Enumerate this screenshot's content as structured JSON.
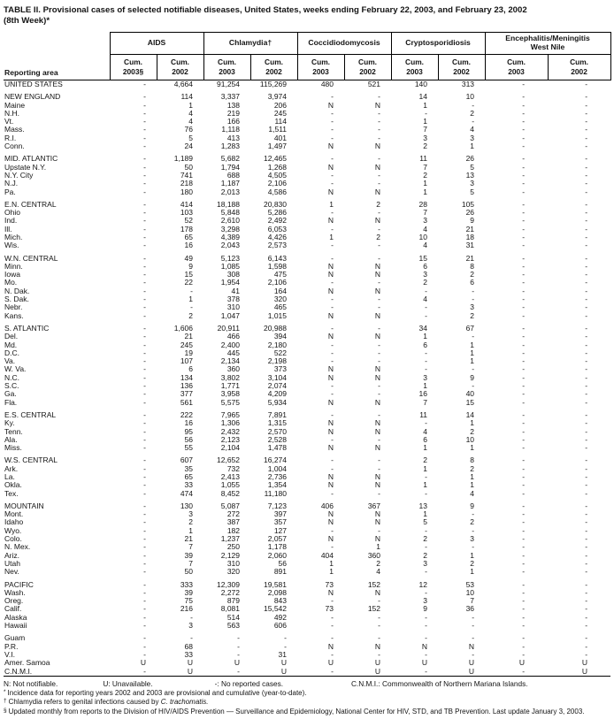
{
  "title_line1": "TABLE II. Provisional cases of selected notifiable diseases, United States, weeks ending February 22, 2003, and February 23, 2002",
  "title_line2": "(8th Week)*",
  "table": {
    "reporting_area_label": "Reporting area",
    "column_groups": [
      {
        "label": "AIDS",
        "sub": [
          "Cum.\n2003§",
          "Cum.\n2002"
        ]
      },
      {
        "label": "Chlamydia†",
        "sub": [
          "Cum.\n2003",
          "Cum.\n2002"
        ]
      },
      {
        "label": "Coccidiodomycosis",
        "sub": [
          "Cum.\n2003",
          "Cum.\n2002"
        ]
      },
      {
        "label": "Cryptosporidiosis",
        "sub": [
          "Cum.\n2003",
          "Cum.\n2002"
        ]
      },
      {
        "label": "Encephalitis/Meningitis\nWest Nile",
        "sub": [
          "Cum.\n2003",
          "Cum.\n2002"
        ]
      }
    ],
    "sections": [
      {
        "rows": [
          [
            "UNITED STATES",
            "-",
            "4,664",
            "91,254",
            "115,269",
            "480",
            "521",
            "140",
            "313",
            "-",
            "-"
          ]
        ]
      },
      {
        "rows": [
          [
            "NEW ENGLAND",
            "-",
            "114",
            "3,337",
            "3,974",
            "-",
            "-",
            "14",
            "10",
            "-",
            "-"
          ],
          [
            "Maine",
            "-",
            "1",
            "138",
            "206",
            "N",
            "N",
            "1",
            "-",
            "-",
            "-"
          ],
          [
            "N.H.",
            "-",
            "4",
            "219",
            "245",
            "-",
            "-",
            "-",
            "2",
            "-",
            "-"
          ],
          [
            "Vt.",
            "-",
            "4",
            "166",
            "114",
            "-",
            "-",
            "1",
            "-",
            "-",
            "-"
          ],
          [
            "Mass.",
            "-",
            "76",
            "1,118",
            "1,511",
            "-",
            "-",
            "7",
            "4",
            "-",
            "-"
          ],
          [
            "R.I.",
            "-",
            "5",
            "413",
            "401",
            "-",
            "-",
            "3",
            "3",
            "-",
            "-"
          ],
          [
            "Conn.",
            "-",
            "24",
            "1,283",
            "1,497",
            "N",
            "N",
            "2",
            "1",
            "-",
            "-"
          ]
        ]
      },
      {
        "rows": [
          [
            "MID. ATLANTIC",
            "-",
            "1,189",
            "5,682",
            "12,465",
            "-",
            "-",
            "11",
            "26",
            "-",
            "-"
          ],
          [
            "Upstate N.Y.",
            "-",
            "50",
            "1,794",
            "1,268",
            "N",
            "N",
            "7",
            "5",
            "-",
            "-"
          ],
          [
            "N.Y. City",
            "-",
            "741",
            "688",
            "4,505",
            "-",
            "-",
            "2",
            "13",
            "-",
            "-"
          ],
          [
            "N.J.",
            "-",
            "218",
            "1,187",
            "2,106",
            "-",
            "-",
            "1",
            "3",
            "-",
            "-"
          ],
          [
            "Pa.",
            "-",
            "180",
            "2,013",
            "4,586",
            "N",
            "N",
            "1",
            "5",
            "-",
            "-"
          ]
        ]
      },
      {
        "rows": [
          [
            "E.N. CENTRAL",
            "-",
            "414",
            "18,188",
            "20,830",
            "1",
            "2",
            "28",
            "105",
            "-",
            "-"
          ],
          [
            "Ohio",
            "-",
            "103",
            "5,848",
            "5,286",
            "-",
            "-",
            "7",
            "26",
            "-",
            "-"
          ],
          [
            "Ind.",
            "-",
            "52",
            "2,610",
            "2,492",
            "N",
            "N",
            "3",
            "9",
            "-",
            "-"
          ],
          [
            "Ill.",
            "-",
            "178",
            "3,298",
            "6,053",
            "-",
            "-",
            "4",
            "21",
            "-",
            "-"
          ],
          [
            "Mich.",
            "-",
            "65",
            "4,389",
            "4,426",
            "1",
            "2",
            "10",
            "18",
            "-",
            "-"
          ],
          [
            "Wis.",
            "-",
            "16",
            "2,043",
            "2,573",
            "-",
            "-",
            "4",
            "31",
            "-",
            "-"
          ]
        ]
      },
      {
        "rows": [
          [
            "W.N. CENTRAL",
            "-",
            "49",
            "5,123",
            "6,143",
            "-",
            "-",
            "15",
            "21",
            "-",
            "-"
          ],
          [
            "Minn.",
            "-",
            "9",
            "1,085",
            "1,598",
            "N",
            "N",
            "6",
            "8",
            "-",
            "-"
          ],
          [
            "Iowa",
            "-",
            "15",
            "308",
            "475",
            "N",
            "N",
            "3",
            "2",
            "-",
            "-"
          ],
          [
            "Mo.",
            "-",
            "22",
            "1,954",
            "2,106",
            "-",
            "-",
            "2",
            "6",
            "-",
            "-"
          ],
          [
            "N. Dak.",
            "-",
            "-",
            "41",
            "164",
            "N",
            "N",
            "-",
            "-",
            "-",
            "-"
          ],
          [
            "S. Dak.",
            "-",
            "1",
            "378",
            "320",
            "-",
            "-",
            "4",
            "-",
            "-",
            "-"
          ],
          [
            "Nebr.",
            "-",
            "-",
            "310",
            "465",
            "-",
            "-",
            "-",
            "3",
            "-",
            "-"
          ],
          [
            "Kans.",
            "-",
            "2",
            "1,047",
            "1,015",
            "N",
            "N",
            "-",
            "2",
            "-",
            "-"
          ]
        ]
      },
      {
        "rows": [
          [
            "S. ATLANTIC",
            "-",
            "1,606",
            "20,911",
            "20,988",
            "-",
            "-",
            "34",
            "67",
            "-",
            "-"
          ],
          [
            "Del.",
            "-",
            "21",
            "466",
            "394",
            "N",
            "N",
            "1",
            "-",
            "-",
            "-"
          ],
          [
            "Md.",
            "-",
            "245",
            "2,400",
            "2,180",
            "-",
            "-",
            "6",
            "1",
            "-",
            "-"
          ],
          [
            "D.C.",
            "-",
            "19",
            "445",
            "522",
            "-",
            "-",
            "-",
            "1",
            "-",
            "-"
          ],
          [
            "Va.",
            "-",
            "107",
            "2,134",
            "2,198",
            "-",
            "-",
            "-",
            "1",
            "-",
            "-"
          ],
          [
            "W. Va.",
            "-",
            "6",
            "360",
            "373",
            "N",
            "N",
            "-",
            "-",
            "-",
            "-"
          ],
          [
            "N.C.",
            "-",
            "134",
            "3,802",
            "3,104",
            "N",
            "N",
            "3",
            "9",
            "-",
            "-"
          ],
          [
            "S.C.",
            "-",
            "136",
            "1,771",
            "2,074",
            "-",
            "-",
            "1",
            "-",
            "-",
            "-"
          ],
          [
            "Ga.",
            "-",
            "377",
            "3,958",
            "4,209",
            "-",
            "-",
            "16",
            "40",
            "-",
            "-"
          ],
          [
            "Fla.",
            "-",
            "561",
            "5,575",
            "5,934",
            "N",
            "N",
            "7",
            "15",
            "-",
            "-"
          ]
        ]
      },
      {
        "rows": [
          [
            "E.S. CENTRAL",
            "-",
            "222",
            "7,965",
            "7,891",
            "-",
            "-",
            "11",
            "14",
            "-",
            "-"
          ],
          [
            "Ky.",
            "-",
            "16",
            "1,306",
            "1,315",
            "N",
            "N",
            "-",
            "1",
            "-",
            "-"
          ],
          [
            "Tenn.",
            "-",
            "95",
            "2,432",
            "2,570",
            "N",
            "N",
            "4",
            "2",
            "-",
            "-"
          ],
          [
            "Ala.",
            "-",
            "56",
            "2,123",
            "2,528",
            "-",
            "-",
            "6",
            "10",
            "-",
            "-"
          ],
          [
            "Miss.",
            "-",
            "55",
            "2,104",
            "1,478",
            "N",
            "N",
            "1",
            "1",
            "-",
            "-"
          ]
        ]
      },
      {
        "rows": [
          [
            "W.S. CENTRAL",
            "-",
            "607",
            "12,652",
            "16,274",
            "-",
            "-",
            "2",
            "8",
            "-",
            "-"
          ],
          [
            "Ark.",
            "-",
            "35",
            "732",
            "1,004",
            "-",
            "-",
            "1",
            "2",
            "-",
            "-"
          ],
          [
            "La.",
            "-",
            "65",
            "2,413",
            "2,736",
            "N",
            "N",
            "-",
            "1",
            "-",
            "-"
          ],
          [
            "Okla.",
            "-",
            "33",
            "1,055",
            "1,354",
            "N",
            "N",
            "1",
            "1",
            "-",
            "-"
          ],
          [
            "Tex.",
            "-",
            "474",
            "8,452",
            "11,180",
            "-",
            "-",
            "-",
            "4",
            "-",
            "-"
          ]
        ]
      },
      {
        "rows": [
          [
            "MOUNTAIN",
            "-",
            "130",
            "5,087",
            "7,123",
            "406",
            "367",
            "13",
            "9",
            "-",
            "-"
          ],
          [
            "Mont.",
            "-",
            "3",
            "272",
            "397",
            "N",
            "N",
            "1",
            "-",
            "-",
            "-"
          ],
          [
            "Idaho",
            "-",
            "2",
            "387",
            "357",
            "N",
            "N",
            "5",
            "2",
            "-",
            "-"
          ],
          [
            "Wyo.",
            "-",
            "1",
            "182",
            "127",
            "-",
            "-",
            "-",
            "-",
            "-",
            "-"
          ],
          [
            "Colo.",
            "-",
            "21",
            "1,237",
            "2,057",
            "N",
            "N",
            "2",
            "3",
            "-",
            "-"
          ],
          [
            "N. Mex.",
            "-",
            "7",
            "250",
            "1,178",
            "-",
            "1",
            "-",
            "-",
            "-",
            "-"
          ],
          [
            "Ariz.",
            "-",
            "39",
            "2,129",
            "2,060",
            "404",
            "360",
            "2",
            "1",
            "-",
            "-"
          ],
          [
            "Utah",
            "-",
            "7",
            "310",
            "56",
            "1",
            "2",
            "3",
            "2",
            "-",
            "-"
          ],
          [
            "Nev.",
            "-",
            "50",
            "320",
            "891",
            "1",
            "4",
            "-",
            "1",
            "-",
            "-"
          ]
        ]
      },
      {
        "rows": [
          [
            "PACIFIC",
            "-",
            "333",
            "12,309",
            "19,581",
            "73",
            "152",
            "12",
            "53",
            "-",
            "-"
          ],
          [
            "Wash.",
            "-",
            "39",
            "2,272",
            "2,098",
            "N",
            "N",
            "-",
            "10",
            "-",
            "-"
          ],
          [
            "Oreg.",
            "-",
            "75",
            "879",
            "843",
            "-",
            "-",
            "3",
            "7",
            "-",
            "-"
          ],
          [
            "Calif.",
            "-",
            "216",
            "8,081",
            "15,542",
            "73",
            "152",
            "9",
            "36",
            "-",
            "-"
          ],
          [
            "Alaska",
            "-",
            "-",
            "514",
            "492",
            "-",
            "-",
            "-",
            "-",
            "-",
            "-"
          ],
          [
            "Hawaii",
            "-",
            "3",
            "563",
            "606",
            "-",
            "-",
            "-",
            "-",
            "-",
            "-"
          ]
        ]
      },
      {
        "rows": [
          [
            "Guam",
            "-",
            "-",
            "-",
            "-",
            "-",
            "-",
            "-",
            "-",
            "-",
            "-"
          ],
          [
            "P.R.",
            "-",
            "68",
            "-",
            "-",
            "N",
            "N",
            "N",
            "N",
            "-",
            "-"
          ],
          [
            "V.I.",
            "-",
            "33",
            "-",
            "31",
            "-",
            "-",
            "-",
            "-",
            "-",
            "-"
          ],
          [
            "Amer. Samoa",
            "U",
            "U",
            "U",
            "U",
            "U",
            "U",
            "U",
            "U",
            "U",
            "U"
          ],
          [
            "C.N.M.I.",
            "-",
            "U",
            "-",
            "U",
            "-",
            "U",
            "-",
            "U",
            "-",
            "U"
          ]
        ]
      }
    ]
  },
  "footnotes": {
    "legend": [
      "N: Not notifiable.",
      "U: Unavailable.",
      "-: No reported cases.",
      "C.N.M.I.: Commonwealth of Northern Mariana Islands."
    ],
    "asterisk": {
      "marker": "*",
      "text": "Incidence data for reporting years 2002 and 2003 are provisional and cumulative (year-to-date)."
    },
    "dagger": {
      "marker": "†",
      "text": "Chlamydia refers to genital infections caused by ",
      "italic": "C. trachomatis."
    },
    "section": {
      "marker": "§",
      "text": "Updated monthly from reports to the Division of HIV/AIDS Prevention — Surveillance and Epidemiology, National Center for HIV, STD, and TB Prevention. Last update January 3, 2003."
    }
  }
}
